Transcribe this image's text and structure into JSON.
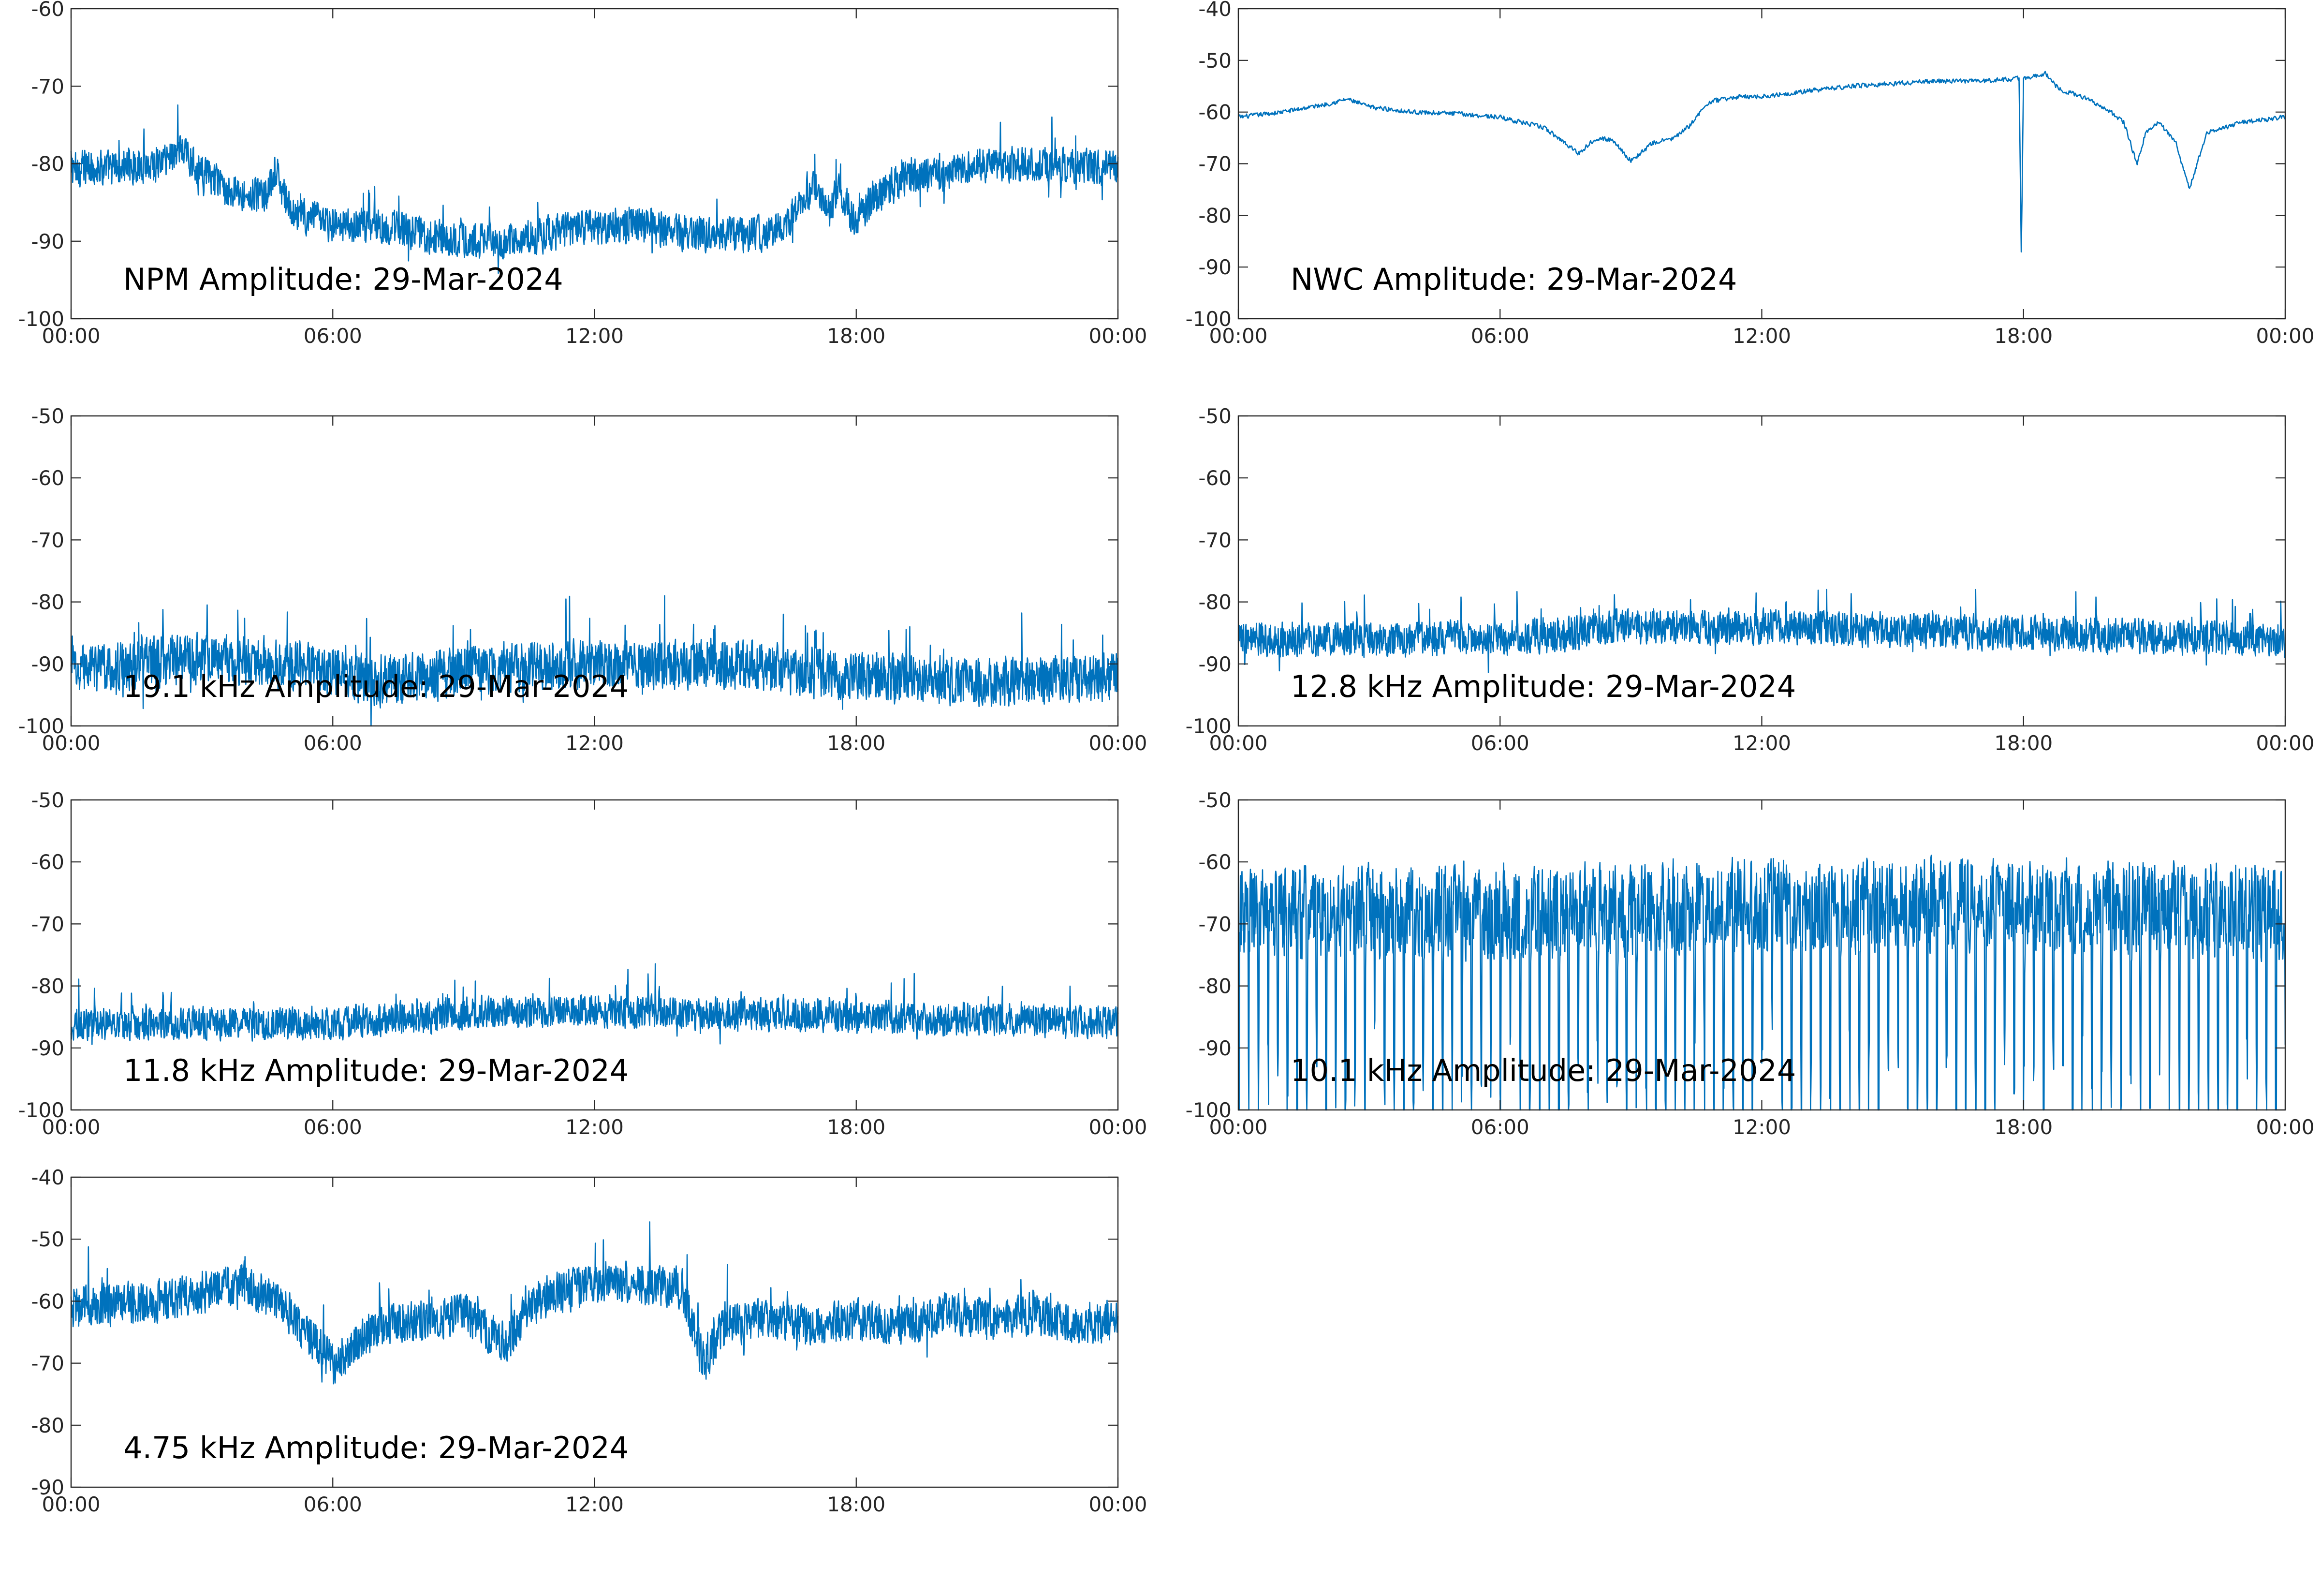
{
  "chart_data": [
    {
      "type": "line",
      "title": "NPM Amplitude: 29-Mar-2024",
      "xlabel": "",
      "ylabel": "",
      "x_ticks": [
        "00:00",
        "06:00",
        "12:00",
        "18:00",
        "00:00"
      ],
      "ylim": [
        -100,
        -60
      ],
      "y_ticks": [
        -100,
        -90,
        -80,
        -70,
        -60
      ],
      "grid": false,
      "series": [
        {
          "color": "#0072BD",
          "noise": 2.6,
          "values": [
            [
              0,
              -80.5
            ],
            [
              1,
              -80.5
            ],
            [
              2,
              -80
            ],
            [
              2.5,
              -78
            ],
            [
              3,
              -81
            ],
            [
              3.5,
              -83
            ],
            [
              4,
              -84
            ],
            [
              4.5,
              -84
            ],
            [
              4.7,
              -81
            ],
            [
              5,
              -86
            ],
            [
              6,
              -88
            ],
            [
              7,
              -88
            ],
            [
              8,
              -89
            ],
            [
              9,
              -90
            ],
            [
              10,
              -90
            ],
            [
              11,
              -89
            ],
            [
              12,
              -88
            ],
            [
              13,
              -88
            ],
            [
              14,
              -89
            ],
            [
              15,
              -89
            ],
            [
              16,
              -89
            ],
            [
              16.5,
              -87
            ],
            [
              17,
              -83
            ],
            [
              17.4,
              -86
            ],
            [
              17.6,
              -83
            ],
            [
              18,
              -88
            ],
            [
              18.3,
              -85
            ],
            [
              19,
              -82
            ],
            [
              20,
              -81.5
            ],
            [
              21,
              -80
            ],
            [
              22,
              -80
            ],
            [
              24,
              -80.5
            ]
          ]
        }
      ]
    },
    {
      "type": "line",
      "title": "NWC Amplitude: 29-Mar-2024",
      "xlabel": "",
      "ylabel": "",
      "x_ticks": [
        "00:00",
        "06:00",
        "12:00",
        "18:00",
        "00:00"
      ],
      "ylim": [
        -100,
        -40
      ],
      "y_ticks": [
        -100,
        -90,
        -80,
        -70,
        -60,
        -50,
        -40
      ],
      "grid": false,
      "series": [
        {
          "color": "#0072BD",
          "noise": 0.5,
          "values": [
            [
              0,
              -61
            ],
            [
              1,
              -60
            ],
            [
              2,
              -58.5
            ],
            [
              2.5,
              -57.5
            ],
            [
              3,
              -59
            ],
            [
              4,
              -60
            ],
            [
              5,
              -60.3
            ],
            [
              6,
              -61
            ],
            [
              7,
              -63
            ],
            [
              7.5,
              -66
            ],
            [
              7.8,
              -68
            ],
            [
              8.2,
              -65
            ],
            [
              8.6,
              -65.5
            ],
            [
              9,
              -69.5
            ],
            [
              9.5,
              -66
            ],
            [
              10,
              -65
            ],
            [
              10.3,
              -63
            ],
            [
              10.8,
              -58
            ],
            [
              11.5,
              -57
            ],
            [
              12,
              -57
            ],
            [
              13,
              -56
            ],
            [
              14,
              -55
            ],
            [
              15,
              -54.5
            ],
            [
              16,
              -54
            ],
            [
              17,
              -54
            ],
            [
              17.9,
              -53.5
            ],
            [
              17.95,
              -88
            ],
            [
              18.0,
              -53.5
            ],
            [
              18.5,
              -52.5
            ],
            [
              18.8,
              -55.5
            ],
            [
              19.5,
              -57.5
            ],
            [
              20,
              -60
            ],
            [
              20.3,
              -62
            ],
            [
              20.6,
              -70
            ],
            [
              20.8,
              -64
            ],
            [
              21.1,
              -62
            ],
            [
              21.5,
              -66
            ],
            [
              21.8,
              -75
            ],
            [
              22.2,
              -64
            ],
            [
              23,
              -62
            ],
            [
              24,
              -61
            ]
          ]
        }
      ]
    },
    {
      "type": "line",
      "title": "19.1 kHz Amplitude: 29-Mar-2024",
      "xlabel": "",
      "ylabel": "",
      "x_ticks": [
        "00:00",
        "06:00",
        "12:00",
        "18:00",
        "00:00"
      ],
      "ylim": [
        -100,
        -50
      ],
      "y_ticks": [
        -100,
        -90,
        -80,
        -70,
        -60,
        -50
      ],
      "grid": false,
      "series": [
        {
          "color": "#0072BD",
          "noise": 4.5,
          "values": [
            [
              0,
              -91
            ],
            [
              3,
              -89
            ],
            [
              6,
              -91
            ],
            [
              7,
              -93
            ],
            [
              9,
              -91
            ],
            [
              12,
              -90
            ],
            [
              15,
              -90
            ],
            [
              18,
              -92
            ],
            [
              21,
              -93
            ],
            [
              24,
              -92
            ]
          ]
        }
      ]
    },
    {
      "type": "line",
      "title": "12.8 kHz Amplitude: 29-Mar-2024",
      "xlabel": "",
      "ylabel": "",
      "x_ticks": [
        "00:00",
        "06:00",
        "12:00",
        "18:00",
        "00:00"
      ],
      "ylim": [
        -100,
        -50
      ],
      "y_ticks": [
        -100,
        -90,
        -80,
        -70,
        -60,
        -50
      ],
      "grid": false,
      "series": [
        {
          "color": "#0072BD",
          "noise": 3.2,
          "values": [
            [
              0,
              -86
            ],
            [
              6,
              -86
            ],
            [
              9,
              -84
            ],
            [
              12,
              -84
            ],
            [
              18,
              -85
            ],
            [
              24,
              -86
            ]
          ]
        }
      ]
    },
    {
      "type": "line",
      "title": "11.8 kHz Amplitude: 29-Mar-2024",
      "xlabel": "",
      "ylabel": "",
      "x_ticks": [
        "00:00",
        "06:00",
        "12:00",
        "18:00",
        "00:00"
      ],
      "ylim": [
        -100,
        -50
      ],
      "y_ticks": [
        -100,
        -90,
        -80,
        -70,
        -60,
        -50
      ],
      "grid": false,
      "series": [
        {
          "color": "#0072BD",
          "noise": 3.0,
          "values": [
            [
              0,
              -86
            ],
            [
              6,
              -86
            ],
            [
              10,
              -84
            ],
            [
              12,
              -84
            ],
            [
              18,
              -85
            ],
            [
              24,
              -86
            ]
          ]
        }
      ]
    },
    {
      "type": "line",
      "title": "10.1 kHz Amplitude: 29-Mar-2024",
      "xlabel": "",
      "ylabel": "",
      "x_ticks": [
        "00:00",
        "06:00",
        "12:00",
        "18:00",
        "00:00"
      ],
      "ylim": [
        -100,
        -50
      ],
      "y_ticks": [
        -100,
        -90,
        -80,
        -70,
        -60,
        -50
      ],
      "grid": false,
      "series": [
        {
          "color": "#0072BD",
          "noise": 12.0,
          "values": [
            [
              0,
              -74
            ],
            [
              6,
              -74
            ],
            [
              12,
              -73
            ],
            [
              18,
              -73
            ],
            [
              24,
              -74
            ]
          ]
        }
      ]
    },
    {
      "type": "line",
      "title": "4.75 kHz Amplitude: 29-Mar-2024",
      "xlabel": "",
      "ylabel": "",
      "x_ticks": [
        "00:00",
        "06:00",
        "12:00",
        "18:00",
        "00:00"
      ],
      "ylim": [
        -90,
        -40
      ],
      "y_ticks": [
        -90,
        -80,
        -70,
        -60,
        -50,
        -40
      ],
      "grid": false,
      "series": [
        {
          "color": "#0072BD",
          "noise": 3.8,
          "values": [
            [
              0,
              -61
            ],
            [
              2,
              -60
            ],
            [
              4,
              -57
            ],
            [
              5,
              -62
            ],
            [
              6,
              -70
            ],
            [
              7,
              -64
            ],
            [
              8,
              -63
            ],
            [
              9,
              -62
            ],
            [
              10,
              -67
            ],
            [
              10.5,
              -61
            ],
            [
              11,
              -59
            ],
            [
              12,
              -57
            ],
            [
              13,
              -57
            ],
            [
              14,
              -58
            ],
            [
              14.5,
              -70
            ],
            [
              15,
              -64
            ],
            [
              16,
              -63
            ],
            [
              17,
              -64
            ],
            [
              18,
              -63
            ],
            [
              19,
              -64
            ],
            [
              20,
              -62
            ],
            [
              21,
              -63
            ],
            [
              22,
              -62
            ],
            [
              23,
              -64
            ],
            [
              24,
              -63
            ]
          ]
        }
      ]
    }
  ]
}
